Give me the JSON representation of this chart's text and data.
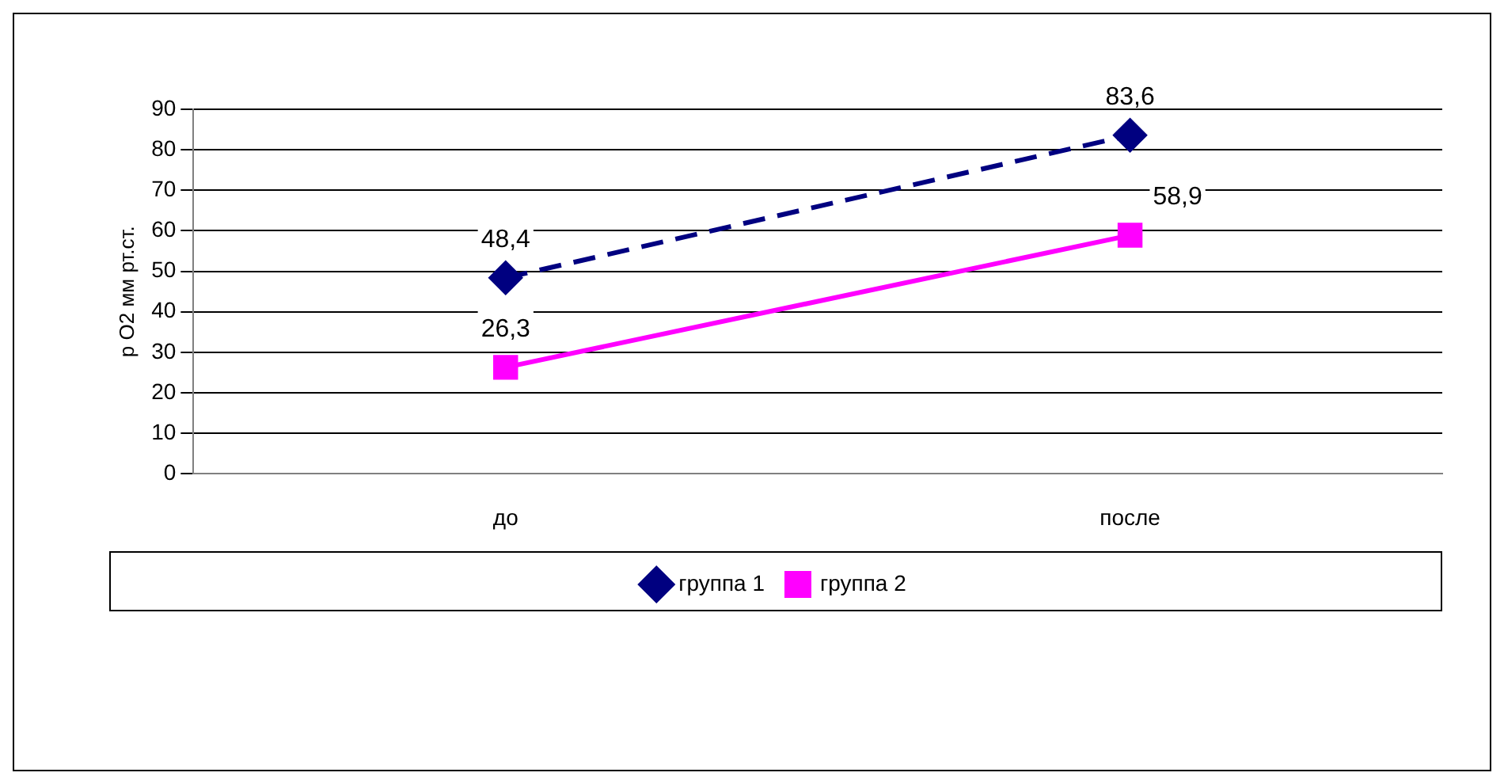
{
  "chart_data": {
    "type": "line",
    "ylabel": "p O2 мм рт.ст.",
    "categories": [
      "до",
      "после"
    ],
    "series": [
      {
        "name": "группа 1",
        "color": "#000080",
        "values": [
          48.4,
          83.6
        ],
        "value_labels": [
          "48,4",
          "83,6"
        ],
        "marker": "diamond",
        "line_style": "dashed"
      },
      {
        "name": "группа 2",
        "color": "#ff00ff",
        "values": [
          26.3,
          58.9
        ],
        "value_labels": [
          "26,3",
          "58,9"
        ],
        "marker": "square",
        "line_style": "solid"
      }
    ],
    "ylim": [
      0,
      90
    ],
    "yticks": [
      0,
      10,
      20,
      30,
      40,
      50,
      60,
      70,
      80,
      90
    ],
    "grid": "y",
    "legend": "bottom"
  }
}
